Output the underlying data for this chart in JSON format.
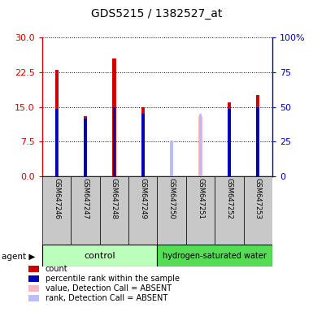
{
  "title": "GDS5215 / 1382527_at",
  "samples": [
    "GSM647246",
    "GSM647247",
    "GSM647248",
    "GSM647249",
    "GSM647250",
    "GSM647251",
    "GSM647252",
    "GSM647253"
  ],
  "red_values": [
    23.0,
    13.0,
    25.5,
    15.0,
    null,
    null,
    16.0,
    17.5
  ],
  "blue_values": [
    14.5,
    12.5,
    15.0,
    13.5,
    null,
    null,
    14.5,
    15.0
  ],
  "pink_values": [
    null,
    null,
    null,
    null,
    6.5,
    13.0,
    null,
    null
  ],
  "lavender_values": [
    null,
    null,
    null,
    null,
    7.8,
    13.5,
    null,
    null
  ],
  "control_samples": [
    0,
    1,
    2,
    3
  ],
  "treated_samples": [
    4,
    5,
    6,
    7
  ],
  "control_label": "control",
  "treated_label": "hydrogen-saturated water",
  "agent_label": "agent",
  "y_left_ticks": [
    0,
    7.5,
    15,
    22.5,
    30
  ],
  "y_right_ticks": [
    0,
    25,
    50,
    75,
    100
  ],
  "y_right_labels": [
    "0",
    "25",
    "50",
    "75",
    "100%"
  ],
  "ylim": [
    0,
    30
  ],
  "red_color": "#CC0000",
  "blue_color": "#0000BB",
  "pink_color": "#FFB6C1",
  "lavender_color": "#BBBBFF",
  "control_bg": "#BBFFBB",
  "treated_bg": "#55DD55",
  "sample_bg": "#C8C8C8",
  "legend_items": [
    {
      "color": "#CC0000",
      "label": "count"
    },
    {
      "color": "#0000BB",
      "label": "percentile rank within the sample"
    },
    {
      "color": "#FFB6C1",
      "label": "value, Detection Call = ABSENT"
    },
    {
      "color": "#BBBBFF",
      "label": "rank, Detection Call = ABSENT"
    }
  ]
}
